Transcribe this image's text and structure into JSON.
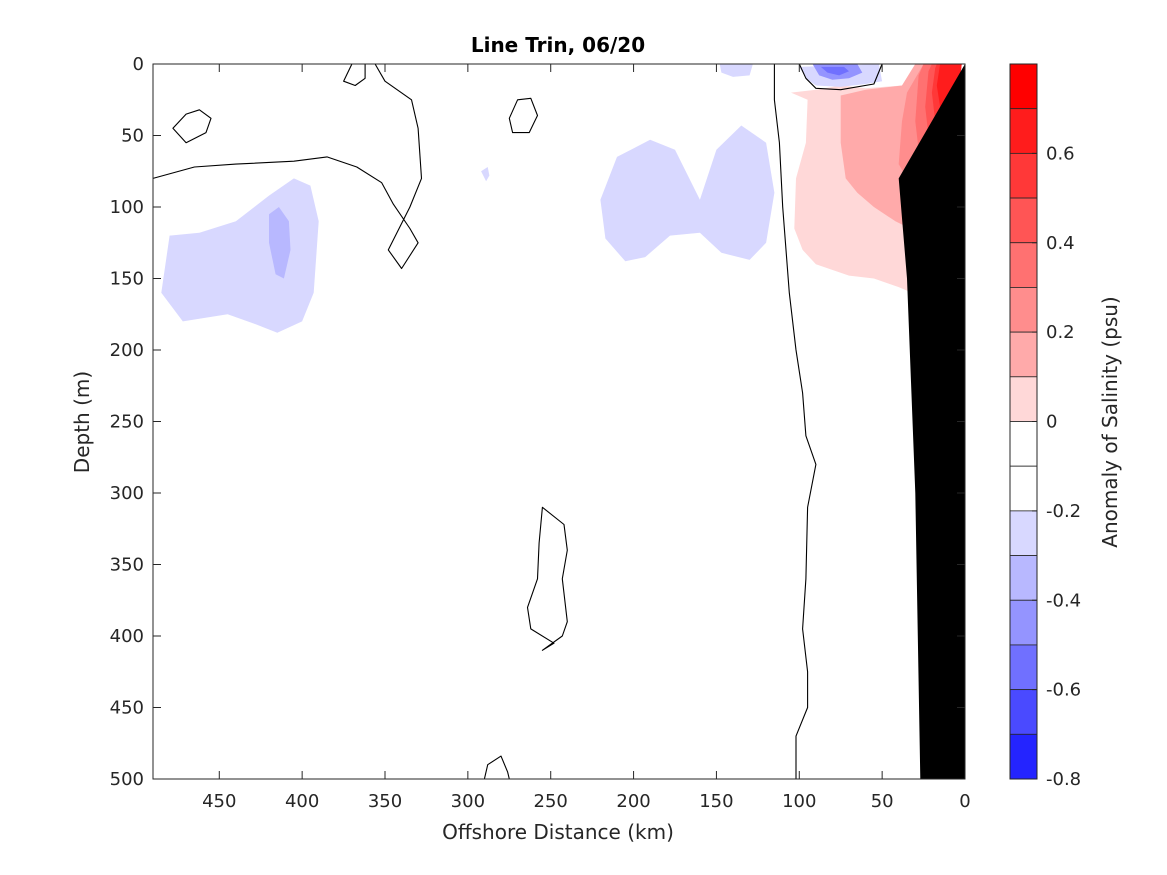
{
  "chart_data": {
    "type": "contour",
    "title": "Line Trin, 06/20",
    "xlabel": "Offshore Distance (km)",
    "ylabel": "Depth (m)",
    "colorbar_label": "Anomaly of Salinity (psu)",
    "x_reversed": true,
    "y_reversed": true,
    "xlim": [
      0,
      490
    ],
    "ylim": [
      0,
      500
    ],
    "xticks": [
      450,
      400,
      350,
      300,
      250,
      200,
      150,
      100,
      50,
      0
    ],
    "yticks": [
      0,
      50,
      100,
      150,
      200,
      250,
      300,
      350,
      400,
      450,
      500
    ],
    "colorbar": {
      "range": [
        -0.8,
        0.8
      ],
      "tick_values": [
        0.6,
        0.4,
        0.2,
        0,
        -0.2,
        -0.4,
        -0.6,
        -0.8
      ],
      "tick_labels": [
        "0.6",
        "0.4",
        "0.2",
        "0",
        "-0.2",
        "-0.4",
        "-0.6",
        "-0.8"
      ],
      "bands": [
        {
          "from": 0.7,
          "to": 0.8,
          "color": "#ff0000"
        },
        {
          "from": 0.6,
          "to": 0.7,
          "color": "#ff1c1c"
        },
        {
          "from": 0.5,
          "to": 0.6,
          "color": "#ff3838"
        },
        {
          "from": 0.4,
          "to": 0.5,
          "color": "#ff5555"
        },
        {
          "from": 0.3,
          "to": 0.4,
          "color": "#ff7171"
        },
        {
          "from": 0.2,
          "to": 0.3,
          "color": "#ff8d8d"
        },
        {
          "from": 0.1,
          "to": 0.2,
          "color": "#ffaaaa"
        },
        {
          "from": 0.0,
          "to": 0.1,
          "color": "#ffd8d8"
        },
        {
          "from": -0.1,
          "to": 0.0,
          "color": "#ffffff"
        },
        {
          "from": -0.2,
          "to": -0.1,
          "color": "#ffffff"
        },
        {
          "from": -0.3,
          "to": -0.2,
          "color": "#d8d8ff"
        },
        {
          "from": -0.4,
          "to": -0.3,
          "color": "#b8b8ff"
        },
        {
          "from": -0.5,
          "to": -0.4,
          "color": "#9494ff"
        },
        {
          "from": -0.6,
          "to": -0.5,
          "color": "#7070ff"
        },
        {
          "from": -0.7,
          "to": -0.6,
          "color": "#4a4aff"
        },
        {
          "from": -0.8,
          "to": -0.7,
          "color": "#2424ff"
        }
      ]
    },
    "filled_regions": [
      {
        "name": "red-anomaly-0.1",
        "color": "#ffd8d8",
        "points": [
          [
            105,
            20
          ],
          [
            95,
            25
          ],
          [
            96,
            55
          ],
          [
            102,
            80
          ],
          [
            103,
            115
          ],
          [
            98,
            130
          ],
          [
            90,
            140
          ],
          [
            70,
            148
          ],
          [
            55,
            150
          ],
          [
            40,
            156
          ],
          [
            32,
            160
          ],
          [
            18,
            158
          ],
          [
            12,
            140
          ],
          [
            8,
            100
          ],
          [
            5,
            40
          ],
          [
            2,
            0
          ],
          [
            30,
            0
          ],
          [
            38,
            15
          ],
          [
            60,
            17
          ],
          [
            75,
            15
          ],
          [
            90,
            18
          ]
        ]
      },
      {
        "name": "red-anomaly-0.2",
        "color": "#ffaaaa",
        "points": [
          [
            75,
            22
          ],
          [
            75,
            55
          ],
          [
            72,
            80
          ],
          [
            65,
            90
          ],
          [
            55,
            100
          ],
          [
            42,
            110
          ],
          [
            28,
            118
          ],
          [
            15,
            120
          ],
          [
            10,
            110
          ],
          [
            7,
            50
          ],
          [
            3,
            0
          ],
          [
            30,
            0
          ],
          [
            38,
            15
          ],
          [
            60,
            18
          ]
        ]
      },
      {
        "name": "red-anomaly-0.3",
        "color": "#ff8d8d",
        "points": [
          [
            35,
            20
          ],
          [
            38,
            40
          ],
          [
            40,
            70
          ],
          [
            30,
            90
          ],
          [
            15,
            100
          ],
          [
            10,
            90
          ],
          [
            6,
            50
          ],
          [
            3,
            0
          ],
          [
            25,
            0
          ]
        ]
      },
      {
        "name": "red-anomaly-0.4",
        "color": "#ff7171",
        "points": [
          [
            28,
            8
          ],
          [
            30,
            40
          ],
          [
            28,
            60
          ],
          [
            20,
            70
          ],
          [
            12,
            70
          ],
          [
            7,
            40
          ],
          [
            3,
            0
          ],
          [
            25,
            0
          ]
        ]
      },
      {
        "name": "red-anomaly-0.5",
        "color": "#ff5555",
        "points": [
          [
            22,
            5
          ],
          [
            24,
            30
          ],
          [
            22,
            50
          ],
          [
            14,
            60
          ],
          [
            8,
            55
          ],
          [
            5,
            30
          ],
          [
            2,
            0
          ],
          [
            20,
            0
          ]
        ]
      },
      {
        "name": "red-anomaly-0.6",
        "color": "#ff3838",
        "points": [
          [
            18,
            3
          ],
          [
            20,
            20
          ],
          [
            18,
            40
          ],
          [
            12,
            48
          ],
          [
            7,
            40
          ],
          [
            4,
            20
          ],
          [
            2,
            0
          ],
          [
            17,
            0
          ]
        ]
      },
      {
        "name": "red-anomaly-0.7",
        "color": "#ff1c1c",
        "points": [
          [
            15,
            0
          ],
          [
            17,
            15
          ],
          [
            15,
            30
          ],
          [
            10,
            35
          ],
          [
            6,
            25
          ],
          [
            3,
            10
          ],
          [
            2,
            0
          ]
        ]
      },
      {
        "name": "blue-anomaly-left",
        "color": "#d8d8ff",
        "points": [
          [
            480,
            120
          ],
          [
            462,
            118
          ],
          [
            440,
            110
          ],
          [
            420,
            92
          ],
          [
            405,
            80
          ],
          [
            395,
            85
          ],
          [
            390,
            110
          ],
          [
            393,
            160
          ],
          [
            400,
            180
          ],
          [
            415,
            188
          ],
          [
            428,
            182
          ],
          [
            445,
            175
          ],
          [
            472,
            180
          ],
          [
            485,
            160
          ]
        ]
      },
      {
        "name": "blue-anomaly-left-core",
        "color": "#b8b8ff",
        "points": [
          [
            420,
            105
          ],
          [
            414,
            100
          ],
          [
            408,
            110
          ],
          [
            407,
            130
          ],
          [
            411,
            150
          ],
          [
            416,
            147
          ],
          [
            420,
            125
          ]
        ]
      },
      {
        "name": "blue-anomaly-mid",
        "color": "#d8d8ff",
        "points": [
          [
            220,
            95
          ],
          [
            210,
            65
          ],
          [
            190,
            53
          ],
          [
            175,
            60
          ],
          [
            160,
            95
          ],
          [
            150,
            60
          ],
          [
            135,
            43
          ],
          [
            120,
            55
          ],
          [
            115,
            90
          ],
          [
            120,
            125
          ],
          [
            130,
            137
          ],
          [
            147,
            132
          ],
          [
            160,
            118
          ],
          [
            178,
            120
          ],
          [
            193,
            135
          ],
          [
            205,
            138
          ],
          [
            217,
            122
          ]
        ]
      },
      {
        "name": "blue-anomaly-speck",
        "color": "#d8d8ff",
        "points": [
          [
            292,
            75
          ],
          [
            288,
            72
          ],
          [
            287,
            78
          ],
          [
            289,
            82
          ]
        ]
      },
      {
        "name": "blue-anomaly-top",
        "color": "#d8d8ff",
        "points": [
          [
            148,
            0
          ],
          [
            128,
            0
          ],
          [
            130,
            8
          ],
          [
            140,
            9
          ],
          [
            147,
            6
          ]
        ]
      },
      {
        "name": "blue-anomaly-surface",
        "color": "#d8d8ff",
        "points": [
          [
            100,
            2
          ],
          [
            96,
            10
          ],
          [
            90,
            15
          ],
          [
            75,
            16
          ],
          [
            60,
            14
          ],
          [
            50,
            12
          ],
          [
            52,
            0
          ]
        ]
      },
      {
        "name": "blue-anomaly-surface-core",
        "color": "#9494ff",
        "points": [
          [
            92,
            0
          ],
          [
            88,
            8
          ],
          [
            80,
            11
          ],
          [
            70,
            10
          ],
          [
            62,
            6
          ],
          [
            65,
            0
          ]
        ]
      },
      {
        "name": "blue-anomaly-surface-inner",
        "color": "#7070ff",
        "points": [
          [
            87,
            2
          ],
          [
            83,
            6
          ],
          [
            76,
            8
          ],
          [
            70,
            5
          ],
          [
            73,
            2
          ]
        ]
      }
    ],
    "contour_lines": [
      {
        "name": "zero-contour-west",
        "closed": false,
        "points": [
          [
            490,
            80
          ],
          [
            465,
            72
          ],
          [
            440,
            70
          ],
          [
            405,
            68
          ],
          [
            385,
            65
          ],
          [
            367,
            72
          ],
          [
            352,
            83
          ],
          [
            345,
            98
          ],
          [
            335,
            115
          ],
          [
            330,
            125
          ],
          [
            340,
            143
          ],
          [
            348,
            130
          ],
          [
            335,
            100
          ],
          [
            328,
            80
          ],
          [
            330,
            45
          ],
          [
            334,
            25
          ],
          [
            350,
            12
          ],
          [
            356,
            0
          ]
        ]
      },
      {
        "name": "zero-contour-loop-a",
        "closed": true,
        "points": [
          [
            370,
            0
          ],
          [
            375,
            12
          ],
          [
            368,
            15
          ],
          [
            362,
            10
          ],
          [
            362,
            0
          ]
        ]
      },
      {
        "name": "zero-contour-loop-b",
        "closed": true,
        "points": [
          [
            470,
            35
          ],
          [
            462,
            32
          ],
          [
            455,
            38
          ],
          [
            458,
            48
          ],
          [
            470,
            55
          ],
          [
            478,
            45
          ]
        ]
      },
      {
        "name": "zero-contour-loop-c",
        "closed": true,
        "points": [
          [
            270,
            25
          ],
          [
            262,
            24
          ],
          [
            258,
            36
          ],
          [
            263,
            48
          ],
          [
            273,
            48
          ],
          [
            275,
            38
          ]
        ]
      },
      {
        "name": "zero-contour-slope",
        "closed": false,
        "points": [
          [
            115,
            0
          ],
          [
            115,
            25
          ],
          [
            112,
            55
          ],
          [
            110,
            100
          ],
          [
            106,
            160
          ],
          [
            102,
            200
          ],
          [
            98,
            230
          ],
          [
            96,
            260
          ],
          [
            90,
            280
          ],
          [
            95,
            310
          ],
          [
            96,
            360
          ],
          [
            98,
            395
          ],
          [
            95,
            425
          ],
          [
            95,
            450
          ],
          [
            102,
            470
          ],
          [
            102,
            500
          ]
        ]
      },
      {
        "name": "zero-contour-deep-loop",
        "closed": true,
        "points": [
          [
            255,
            310
          ],
          [
            242,
            322
          ],
          [
            240,
            340
          ],
          [
            243,
            360
          ],
          [
            240,
            390
          ],
          [
            243,
            400
          ],
          [
            255,
            410
          ],
          [
            248,
            405
          ],
          [
            262,
            395
          ],
          [
            264,
            380
          ],
          [
            258,
            360
          ],
          [
            257,
            335
          ]
        ]
      },
      {
        "name": "zero-contour-bottom",
        "closed": false,
        "points": [
          [
            290,
            500
          ],
          [
            288,
            490
          ],
          [
            280,
            484
          ],
          [
            276,
            495
          ],
          [
            275,
            500
          ]
        ]
      },
      {
        "name": "zero-contour-surface",
        "closed": false,
        "points": [
          [
            100,
            0
          ],
          [
            96,
            10
          ],
          [
            90,
            17
          ],
          [
            75,
            18
          ],
          [
            55,
            14
          ],
          [
            50,
            0
          ]
        ]
      }
    ],
    "bathymetry": {
      "color": "#000000",
      "points": [
        [
          0,
          0
        ],
        [
          0,
          500
        ],
        [
          27,
          500
        ],
        [
          30,
          300
        ],
        [
          35,
          150
        ],
        [
          40,
          80
        ]
      ]
    }
  }
}
